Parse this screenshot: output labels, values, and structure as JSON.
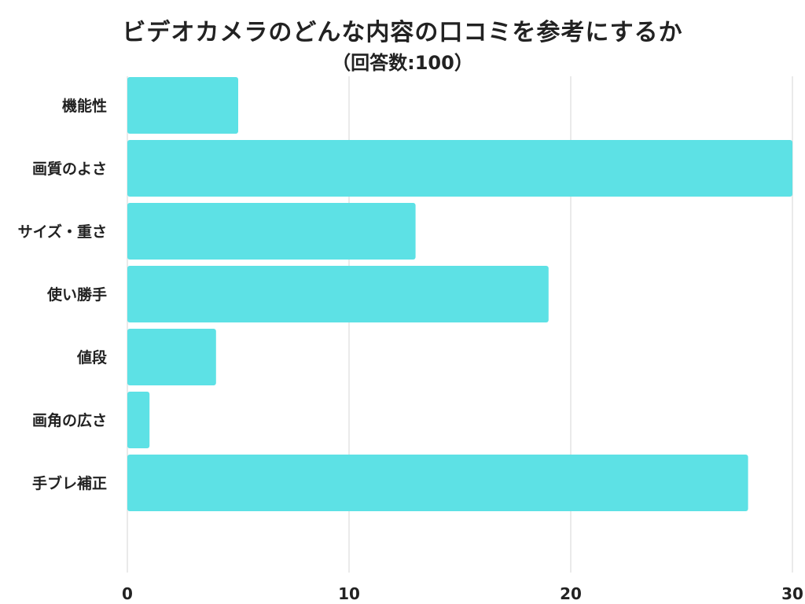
{
  "chart_data": {
    "type": "bar",
    "orientation": "horizontal",
    "title": "ビデオカメラのどんな内容の口コミを参考にするか",
    "subtitle": "（回答数:100）",
    "categories": [
      "機能性",
      "画質のよさ",
      "サイズ・重さ",
      "使い勝手",
      "値段",
      "画角の広さ",
      "手ブレ補正"
    ],
    "values": [
      5,
      30,
      13,
      19,
      4,
      1,
      28
    ],
    "xlim": [
      0,
      30
    ],
    "xticks": [
      "0",
      "10",
      "20",
      "30"
    ],
    "grid": true,
    "bar_color": "#5de1e5",
    "grid_color": "#dddddd"
  }
}
